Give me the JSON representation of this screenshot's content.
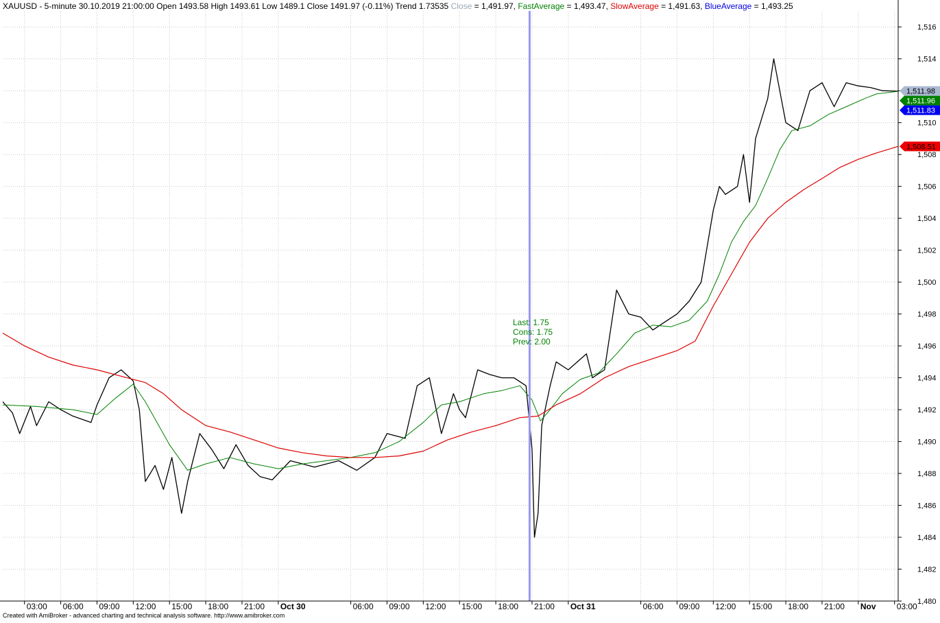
{
  "header": {
    "symbol_info": "XAUUSD - 5-minute 30.10.2019 21:00:00 Open 1493.58 High 1493.61 Low 1489.1 Close 1491.97 (-0.11%) Trend 1.73535",
    "close_label": "Close",
    "close_value": " = 1,491.97, ",
    "fast_label": "FastAverage",
    "fast_value": " = 1,493.47, ",
    "slow_label": "SlowAverage",
    "slow_value": " = 1,491.63, ",
    "blue_label": "BlueAverage",
    "blue_value": " = 1,493.25"
  },
  "annotation": {
    "line1": "Last: 1.75",
    "line2": "Cons: 1.75",
    "line3": "Prev: 2.00"
  },
  "footer": {
    "credit": "Created with AmiBroker - advanced charting and technical analysis software. http://www.amibroker.com"
  },
  "price_tags": [
    {
      "label": "1,511.98",
      "bg": "#aab8d0",
      "fg": "#000000",
      "value": 1511.98
    },
    {
      "label": "1,511.96",
      "bg": "#008000",
      "fg": "#ffffff",
      "value": 1511.96
    },
    {
      "label": "1,511.83",
      "bg": "#0000ee",
      "fg": "#ffffff",
      "value": 1511.83
    },
    {
      "label": "1,508.51",
      "bg": "#ee0000",
      "fg": "#000000",
      "value": 1508.51
    }
  ],
  "colors": {
    "close": "#9aa7b8",
    "fast": "#008000",
    "slow": "#dd0000",
    "blue": "#0000dd",
    "cursor": "#9999ee",
    "grid": "#c8c8c8",
    "annotation": "#008000"
  },
  "chart_data": {
    "type": "line",
    "title": "XAUUSD - 5-minute",
    "ylim": [
      1480,
      1517
    ],
    "y_ticks": [
      "1,480",
      "1,482",
      "1,484",
      "1,486",
      "1,488",
      "1,490",
      "1,492",
      "1,494",
      "1,496",
      "1,498",
      "1,500",
      "1,502",
      "1,504",
      "1,506",
      "1,508",
      "1,510",
      "1,512",
      "1,514",
      "1,516"
    ],
    "x_ticks": [
      "03:00",
      "06:00",
      "09:00",
      "12:00",
      "15:00",
      "18:00",
      "21:00",
      "Oct 30",
      "06:00",
      "09:00",
      "12:00",
      "15:00",
      "18:00",
      "21:00",
      "Oct 31",
      "06:00",
      "09:00",
      "12:00",
      "15:00",
      "18:00",
      "21:00",
      "Nov",
      "03:00"
    ],
    "x_tick_hours": [
      3,
      6,
      9,
      12,
      15,
      18,
      21,
      24,
      30,
      33,
      36,
      39,
      42,
      45,
      48,
      54,
      57,
      60,
      63,
      66,
      69,
      72,
      75
    ],
    "x_range_hours": [
      1.2,
      75.3
    ],
    "cursor_hour": 44.8,
    "grid": true,
    "series": [
      {
        "name": "Close",
        "hours": [
          1.2,
          2.0,
          2.6,
          3.5,
          4.0,
          5.0,
          6.0,
          7.0,
          8.5,
          9.0,
          10.0,
          11.0,
          12.0,
          12.5,
          13.0,
          13.8,
          14.5,
          15.2,
          16.0,
          16.5,
          17.5,
          18.5,
          19.5,
          20.5,
          21.5,
          22.5,
          23.5,
          25.0,
          27.0,
          29.0,
          30.5,
          32.0,
          33.0,
          34.5,
          35.5,
          36.5,
          37.5,
          38.5,
          39.0,
          39.5,
          40.5,
          41.5,
          42.5,
          43.5,
          44.5,
          45.0,
          45.2,
          45.5,
          45.8,
          46.5,
          47.0,
          48.0,
          49.5,
          50.0,
          51.0,
          52.0,
          53.0,
          54.0,
          55.0,
          56.0,
          57.0,
          58.0,
          59.0,
          60.0,
          60.5,
          61.0,
          62.0,
          62.5,
          63.0,
          63.5,
          64.5,
          65.0,
          66.0,
          67.0,
          68.0,
          69.0,
          70.0,
          71.0,
          72.0,
          73.0,
          74.0,
          75.3
        ],
        "values": [
          1492.5,
          1491.8,
          1490.5,
          1492.2,
          1491.0,
          1492.5,
          1492.0,
          1491.6,
          1491.2,
          1492.3,
          1494.0,
          1494.5,
          1493.8,
          1492.0,
          1487.5,
          1488.5,
          1487.0,
          1489.0,
          1485.5,
          1487.5,
          1490.5,
          1489.5,
          1488.3,
          1489.8,
          1488.5,
          1487.8,
          1487.6,
          1488.8,
          1488.4,
          1488.8,
          1488.2,
          1489.0,
          1490.5,
          1490.2,
          1493.5,
          1494.0,
          1490.5,
          1493.0,
          1492.0,
          1491.5,
          1494.5,
          1494.2,
          1494.0,
          1494.0,
          1493.5,
          1489.5,
          1484.0,
          1485.5,
          1491.0,
          1493.5,
          1495.0,
          1494.5,
          1495.5,
          1494.0,
          1494.5,
          1499.5,
          1498.0,
          1497.8,
          1497.0,
          1497.5,
          1498.0,
          1498.8,
          1500.0,
          1504.5,
          1506.0,
          1505.5,
          1506.0,
          1508.0,
          1505.0,
          1509.0,
          1511.5,
          1514.0,
          1510.0,
          1509.5,
          1512.0,
          1512.5,
          1511.0,
          1512.5,
          1512.3,
          1512.2,
          1512.0,
          1511.97
        ]
      },
      {
        "name": "FastAverage",
        "hours": [
          1.2,
          4.0,
          7.0,
          9.0,
          10.5,
          12.0,
          13.0,
          15.0,
          16.5,
          18.0,
          20.0,
          22.0,
          24.0,
          26.0,
          28.0,
          30.0,
          32.0,
          34.0,
          36.0,
          37.5,
          39.0,
          41.0,
          42.5,
          44.0,
          45.0,
          45.7,
          46.5,
          47.5,
          49.0,
          50.5,
          52.0,
          53.5,
          55.0,
          56.5,
          58.0,
          59.5,
          60.5,
          61.5,
          62.5,
          63.5,
          64.5,
          65.5,
          66.5,
          68.0,
          69.5,
          71.0,
          72.5,
          73.5,
          75.3
        ],
        "values": [
          1492.3,
          1492.2,
          1492.0,
          1491.7,
          1492.7,
          1493.6,
          1492.5,
          1489.8,
          1488.2,
          1488.6,
          1489.0,
          1488.6,
          1488.3,
          1488.6,
          1488.8,
          1489.0,
          1489.3,
          1490.0,
          1491.2,
          1492.3,
          1492.5,
          1493.0,
          1493.2,
          1493.5,
          1492.6,
          1491.3,
          1492.0,
          1493.0,
          1493.9,
          1494.3,
          1495.5,
          1496.8,
          1497.3,
          1497.2,
          1497.6,
          1498.8,
          1500.5,
          1502.5,
          1503.8,
          1504.8,
          1506.5,
          1508.3,
          1509.5,
          1509.8,
          1510.5,
          1511.0,
          1511.5,
          1511.8,
          1511.96
        ]
      },
      {
        "name": "SlowAverage",
        "hours": [
          1.2,
          3.0,
          5.0,
          7.0,
          9.0,
          11.0,
          13.0,
          14.5,
          16.0,
          18.0,
          20.0,
          22.0,
          24.0,
          26.0,
          28.0,
          30.0,
          32.0,
          34.0,
          36.0,
          38.0,
          40.0,
          42.0,
          44.0,
          45.5,
          47.0,
          49.0,
          51.0,
          53.0,
          55.0,
          57.0,
          58.5,
          60.0,
          61.5,
          63.0,
          64.5,
          66.0,
          67.5,
          69.0,
          70.5,
          72.0,
          73.5,
          75.3
        ],
        "values": [
          1496.8,
          1496.0,
          1495.3,
          1494.8,
          1494.5,
          1494.1,
          1493.7,
          1493.0,
          1492.0,
          1491.0,
          1490.6,
          1490.1,
          1489.6,
          1489.3,
          1489.1,
          1489.0,
          1489.0,
          1489.1,
          1489.4,
          1490.1,
          1490.6,
          1491.0,
          1491.5,
          1491.6,
          1492.3,
          1493.0,
          1494.0,
          1494.7,
          1495.2,
          1495.7,
          1496.3,
          1498.5,
          1500.5,
          1502.5,
          1504.0,
          1505.0,
          1505.8,
          1506.5,
          1507.2,
          1507.7,
          1508.1,
          1508.51
        ]
      }
    ]
  }
}
